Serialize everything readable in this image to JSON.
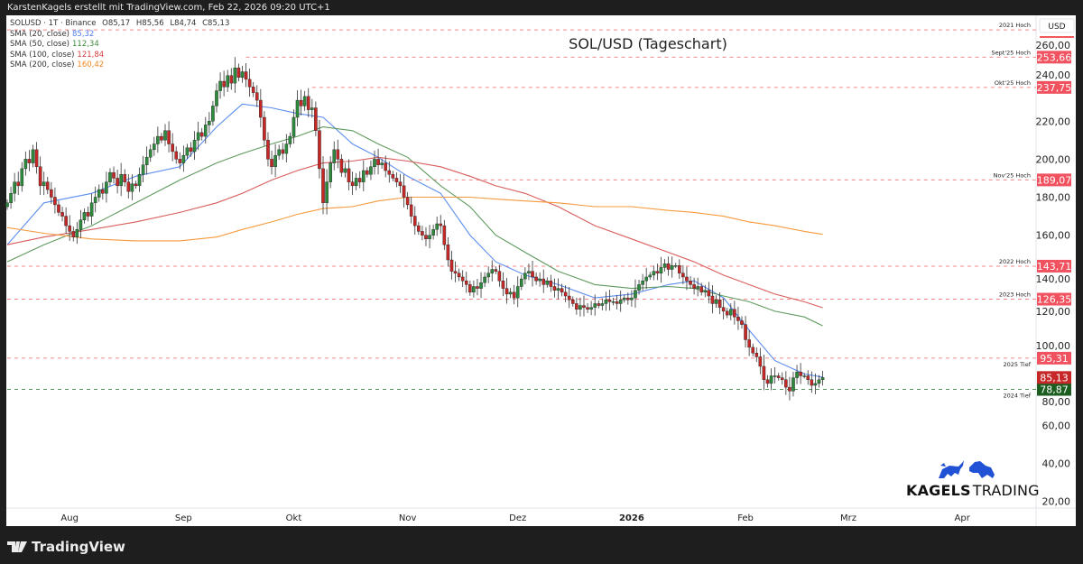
{
  "header": {
    "caption": "KarstenKagels erstellt mit TradingView.com, Feb 22, 2026 09:20 UTC+1"
  },
  "legend": {
    "symbol_line": "SOLUSD · 1T · Binance",
    "ohlc": {
      "open": "O85,17",
      "high": "H85,56",
      "low": "L84,74",
      "close": "C85,13"
    },
    "indicators": [
      {
        "label": "SMA (20, close)",
        "value": "85,32",
        "color": "#4f7df5"
      },
      {
        "label": "SMA (50, close)",
        "value": "112,34",
        "color": "#3f8a3f"
      },
      {
        "label": "SMA (100, close)",
        "value": "121,84",
        "color": "#d43d3d"
      },
      {
        "label": "SMA (200, close)",
        "value": "160,42",
        "color": "#f5861f"
      }
    ]
  },
  "footer": {
    "brand": "TradingView"
  },
  "logo": {
    "bold": "KAGELS",
    "light": "TRADING"
  },
  "chart_data": {
    "type": "candlestick",
    "title": "SOL/USD (Tageschart)",
    "currency_label": "USD",
    "ylim": [
      10,
      268
    ],
    "y_ticks": [
      "260,00",
      "240,00",
      "220,00",
      "200,00",
      "180,00",
      "160,00",
      "140,00",
      "120,00",
      "100,00",
      "80,00",
      "60,00",
      "40,00",
      "20,00"
    ],
    "x_ticks": [
      {
        "label": "Aug",
        "date": "2025-08-01"
      },
      {
        "label": "Sep",
        "date": "2025-09-01"
      },
      {
        "label": "Okt",
        "date": "2025-10-01"
      },
      {
        "label": "Nov",
        "date": "2025-11-01"
      },
      {
        "label": "Dez",
        "date": "2025-12-01"
      },
      {
        "label": "2026",
        "date": "2026-01-01",
        "bold": true
      },
      {
        "label": "Feb",
        "date": "2026-02-01"
      },
      {
        "label": "Mrz",
        "date": "2026-03-01"
      },
      {
        "label": "Apr",
        "date": "2026-04-01"
      }
    ],
    "x_range": [
      "2025-07-14",
      "2026-04-30"
    ],
    "first_candle_date": "2025-07-15",
    "daily_closes": [
      177,
      182,
      188,
      186,
      195,
      200,
      198,
      205,
      196,
      186,
      188,
      184,
      180,
      176,
      172,
      170,
      165,
      162,
      159,
      163,
      168,
      172,
      170,
      177,
      180,
      184,
      182,
      188,
      193,
      190,
      186,
      192,
      188,
      183,
      187,
      186,
      192,
      197,
      201,
      205,
      208,
      212,
      210,
      215,
      208,
      204,
      200,
      198,
      202,
      206,
      204,
      210,
      214,
      212,
      218,
      220,
      228,
      236,
      241,
      238,
      244,
      240,
      248,
      243,
      246,
      242,
      238,
      235,
      231,
      222,
      210,
      200,
      196,
      202,
      205,
      203,
      208,
      212,
      222,
      231,
      228,
      233,
      226,
      227,
      215,
      195,
      177,
      188,
      198,
      205,
      200,
      193,
      195,
      188,
      186,
      190,
      188,
      194,
      192,
      196,
      200,
      197,
      198,
      194,
      192,
      190,
      188,
      186,
      180,
      176,
      170,
      165,
      162,
      160,
      158,
      160,
      163,
      166,
      165,
      155,
      147,
      141,
      140,
      138,
      136,
      134,
      130,
      133,
      132,
      135,
      138,
      140,
      142,
      141,
      136,
      132,
      129,
      130,
      127,
      133,
      137,
      140,
      141,
      138,
      136,
      137,
      134,
      136,
      133,
      131,
      132,
      130,
      128,
      126,
      124,
      121,
      123,
      122,
      121,
      122,
      124,
      123,
      124,
      126,
      125,
      125,
      124,
      126,
      127,
      126,
      127,
      131,
      134,
      136,
      138,
      139,
      141,
      140,
      143,
      145,
      142,
      144,
      144,
      140,
      138,
      136,
      134,
      132,
      133,
      130,
      131,
      128,
      124,
      126,
      122,
      120,
      118,
      121,
      117,
      115,
      113,
      105,
      101,
      98,
      96,
      91,
      84,
      82,
      86,
      86,
      85,
      84,
      80,
      78,
      85,
      88,
      86,
      86,
      84,
      81,
      82,
      84,
      85.13
    ],
    "sma_dates": [
      "2025-07-15",
      "2025-07-25",
      "2025-08-07",
      "2025-08-19",
      "2025-08-31",
      "2025-09-10",
      "2025-09-17",
      "2025-09-25",
      "2025-10-02",
      "2025-10-09",
      "2025-10-17",
      "2025-10-24",
      "2025-11-01",
      "2025-11-10",
      "2025-11-18",
      "2025-11-25",
      "2025-12-03",
      "2025-12-12",
      "2025-12-22",
      "2026-01-01",
      "2026-01-11",
      "2026-01-18",
      "2026-01-26",
      "2026-02-02",
      "2026-02-09",
      "2026-02-17",
      "2026-02-22"
    ],
    "series": [
      {
        "name": "SMA (20, close)",
        "color": "#5b8def",
        "values": [
          155,
          177,
          182,
          191,
          196,
          217,
          229,
          227,
          224,
          222,
          208,
          201,
          191,
          182,
          160,
          146,
          139,
          134,
          127,
          129,
          134,
          136,
          127,
          110,
          94,
          87,
          85.32
        ]
      },
      {
        "name": "SMA (50, close)",
        "color": "#5e9a5e",
        "values": [
          146,
          155,
          165,
          177,
          189,
          198,
          203,
          208,
          212,
          217,
          215,
          208,
          201,
          186,
          175,
          160,
          151,
          141,
          134,
          132,
          133,
          132,
          128,
          125,
          120,
          117,
          112.34
        ]
      },
      {
        "name": "SMA (100, close)",
        "color": "#d95c5c",
        "values": [
          155,
          159,
          163,
          167,
          172,
          177,
          182,
          189,
          194,
          198,
          199,
          201,
          199,
          196,
          191,
          186,
          182,
          175,
          165,
          158,
          151,
          146,
          139,
          134,
          129,
          125,
          121.84
        ]
      },
      {
        "name": "SMA (200, close)",
        "color": "#f59a3c",
        "values": [
          164,
          161,
          158,
          157,
          157,
          159,
          163,
          167,
          171,
          174,
          175,
          178,
          180,
          180,
          180,
          179,
          178,
          177,
          175,
          175,
          173,
          172,
          170,
          167,
          165,
          162,
          160.42
        ]
      }
    ],
    "levels": [
      {
        "label": "2021 Hoch",
        "value": 268,
        "start_date": "2025-07-15",
        "color": "#f26b6b",
        "price_label": ""
      },
      {
        "label": "Sept'25 Hoch",
        "value": 253.66,
        "start_date": "2025-09-18",
        "color": "#f26b6b",
        "price_label": "253,66"
      },
      {
        "label": "Okt'25 Hoch",
        "value": 237.75,
        "start_date": "2025-10-06",
        "color": "#f26b6b",
        "price_label": "237,75"
      },
      {
        "label": "Nov'25 Hoch",
        "value": 189.07,
        "start_date": "2025-11-02",
        "color": "#f26b6b",
        "price_label": "189,07"
      },
      {
        "label": "2022 Hoch",
        "value": 143.71,
        "start_date": "2025-07-15",
        "color": "#f26b6b",
        "price_label": "143,71"
      },
      {
        "label": "2023 Hoch",
        "value": 126.35,
        "start_date": "2025-07-15",
        "color": "#f26b6b",
        "price_label": "126,35"
      },
      {
        "label": "2025 Tief",
        "value": 95.31,
        "start_date": "2025-07-15",
        "color": "#f26b6b",
        "price_label": "95,31",
        "label_below": true
      },
      {
        "label": "2024 Tief",
        "value": 78.87,
        "start_date": "2025-07-15",
        "color": "#2e7d32",
        "price_label": "78,87",
        "label_below": true,
        "badge": "#1b5e20"
      }
    ],
    "last_price": {
      "value": 85.13,
      "label": "85,13",
      "color": "#c62828"
    },
    "up_color": "#2e8b3e",
    "down_color": "#c62828"
  }
}
